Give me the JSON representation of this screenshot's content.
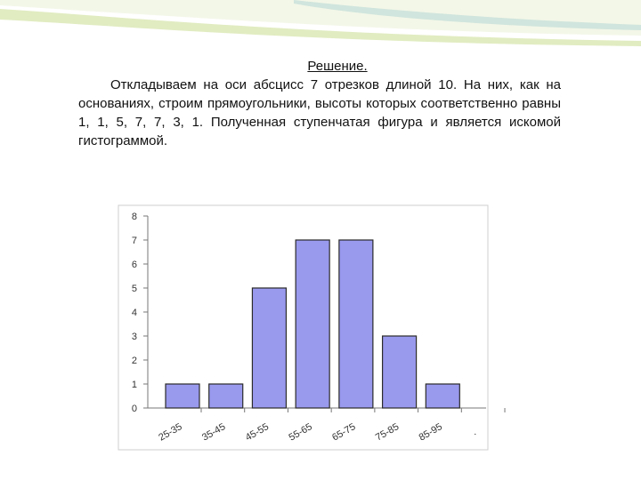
{
  "slide": {
    "heading": "Решение.",
    "paragraph": "Откладываем на оси абсцисс 7 отрезков длиной 10. На них, как на основаниях, строим прямоугольники, высоты которых соответственно равны 1, 1, 5, 7, 7, 3, 1. Полученная ступенчатая фигура и является искомой гистограммой."
  },
  "colors": {
    "bar_fill": "#9999ee",
    "bar_stroke": "#2b2b2b",
    "decor_green": "#c9dc8e",
    "decor_teal": "#b9d9d6"
  },
  "chart_data": {
    "type": "bar",
    "categories": [
      "25-35",
      "35-45",
      "45-55",
      "55-65",
      "65-75",
      "75-85",
      "85-95",
      "."
    ],
    "values": [
      1,
      1,
      5,
      7,
      7,
      3,
      1,
      null
    ],
    "title": "",
    "xlabel": "",
    "ylabel": "",
    "ylim": [
      0,
      8
    ],
    "yticks": [
      "0",
      "1",
      "2",
      "3",
      "4",
      "5",
      "6",
      "7",
      "8"
    ],
    "grid": false,
    "legend": "none"
  }
}
